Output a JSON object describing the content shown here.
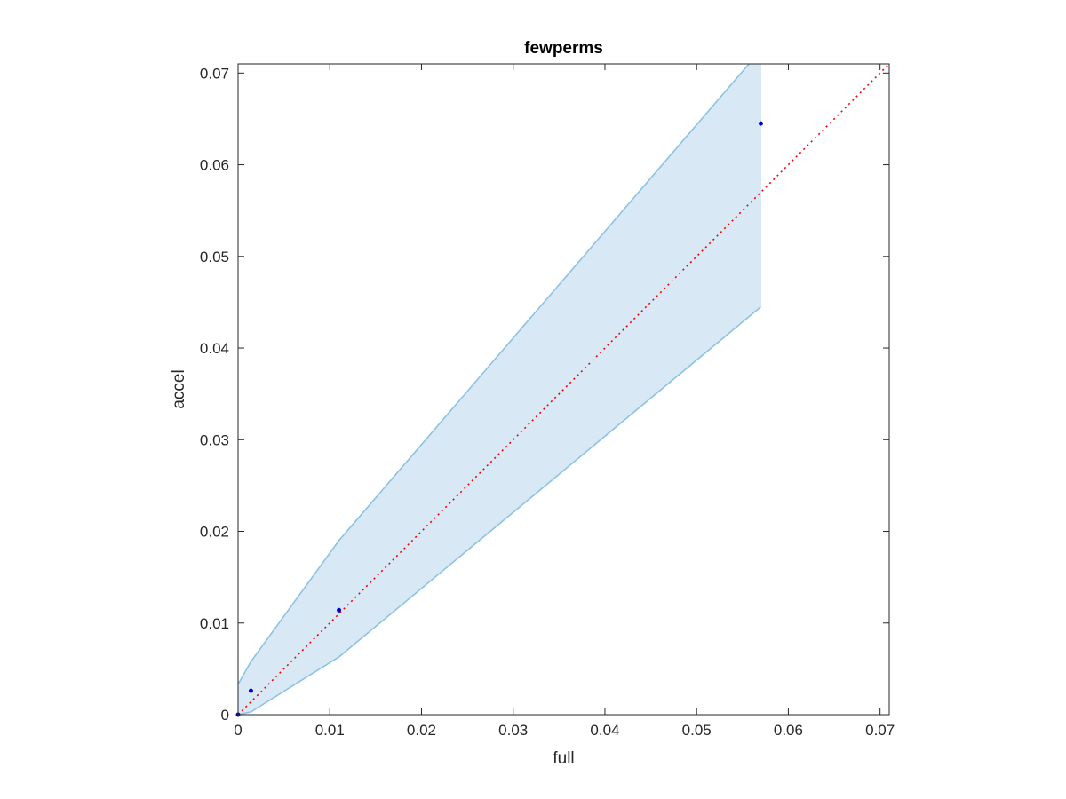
{
  "chart_data": {
    "type": "scatter",
    "title": "fewperms",
    "xlabel": "full",
    "ylabel": "accel",
    "xlim": [
      0,
      0.071
    ],
    "ylim": [
      0,
      0.071
    ],
    "xticks": [
      0,
      0.01,
      0.02,
      0.03,
      0.04,
      0.05,
      0.06,
      0.07
    ],
    "xtick_labels": [
      "0",
      "0.01",
      "0.02",
      "0.03",
      "0.04",
      "0.05",
      "0.06",
      "0.07"
    ],
    "yticks": [
      0,
      0.01,
      0.02,
      0.03,
      0.04,
      0.05,
      0.06,
      0.07
    ],
    "ytick_labels": [
      "0",
      "0.01",
      "0.02",
      "0.03",
      "0.04",
      "0.05",
      "0.06",
      "0.07"
    ],
    "grid": false,
    "points": {
      "x": [
        0,
        0.0014,
        0.011,
        0.057
      ],
      "y": [
        0,
        0.0026,
        0.0114,
        0.0645
      ],
      "color": "#0000cc"
    },
    "band": {
      "x": [
        0,
        0.0014,
        0.011,
        0.057
      ],
      "upper": [
        0.0033,
        0.0058,
        0.019,
        0.0725
      ],
      "lower": [
        0,
        0.0003,
        0.0063,
        0.0445
      ],
      "fill_color": "#d8e8f5",
      "line_color": "#8cc3e2"
    },
    "reference_line": {
      "x": [
        0,
        0.071
      ],
      "y": [
        0,
        0.071
      ],
      "color": "#ff0000",
      "style": "dotted"
    }
  }
}
